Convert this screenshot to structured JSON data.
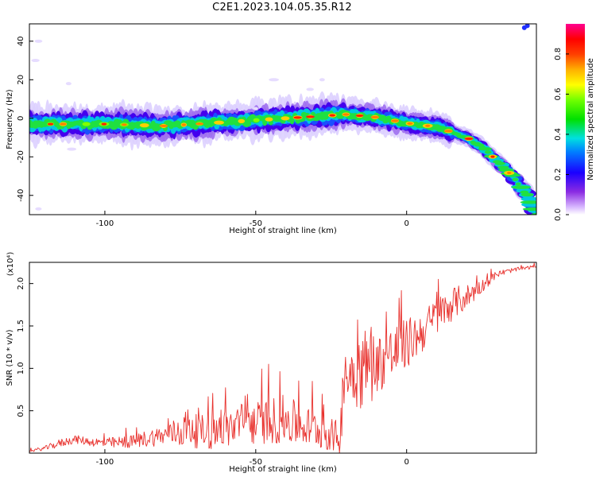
{
  "title": "C2E1.2023.104.05.35.R12",
  "chart_data": [
    {
      "type": "heatmap",
      "name": "spectrogram",
      "xlabel": "Height of straight line (km)",
      "ylabel": "Frequency (Hz)",
      "xlim": [
        -125,
        43
      ],
      "ylim": [
        -50,
        49
      ],
      "xticks": [
        -100,
        -50,
        0
      ],
      "xtick_labels": [
        "-100",
        "-50",
        "0"
      ],
      "yticks": [
        -40,
        -20,
        0,
        20,
        40
      ],
      "ytick_labels": [
        "-40",
        "-20",
        "0",
        "20",
        "40"
      ],
      "ridge": {
        "x": [
          -125,
          -110,
          -100,
          -90,
          -80,
          -70,
          -60,
          -50,
          -40,
          -30,
          -20,
          -10,
          0,
          10,
          20,
          25,
          30,
          35,
          40,
          43
        ],
        "freq": [
          -3,
          -3,
          -3,
          -3.5,
          -4,
          -3,
          -2,
          -1,
          0,
          1,
          2,
          0.5,
          -2.5,
          -4.5,
          -10,
          -15,
          -22,
          -30,
          -40,
          -50
        ]
      },
      "colorbar": {
        "label": "Normalized spectral amplitude",
        "range": [
          0.0,
          0.95
        ],
        "ticks": [
          0.0,
          0.2,
          0.4,
          0.6,
          0.8
        ],
        "tick_labels": [
          "0.0",
          "0.2",
          "0.4",
          "0.6",
          "0.8"
        ]
      }
    },
    {
      "type": "line",
      "name": "snr",
      "xlabel": "Height of straight line (km)",
      "ylabel": "SNR (10 * v/v)",
      "multiplier": "(x10⁴)",
      "xlim": [
        -125,
        43
      ],
      "ylim": [
        0.0,
        2.25
      ],
      "xticks": [
        -100,
        -50,
        0
      ],
      "xtick_labels": [
        "-100",
        "-50",
        "0"
      ],
      "yticks": [
        0.5,
        1.0,
        1.5,
        2.0
      ],
      "ytick_labels": [
        "0.5",
        "1.0",
        "1.5",
        "2.0"
      ],
      "color": "#e8322e",
      "series": [
        {
          "name": "SNR",
          "x": [
            -125,
            -120,
            -115,
            -110,
            -105,
            -100,
            -95,
            -90,
            -85,
            -80,
            -75,
            -72,
            -70,
            -65,
            -60,
            -55,
            -50,
            -45,
            -40,
            -35,
            -30,
            -25,
            -22,
            -21,
            -18,
            -15,
            -12,
            -10,
            -5,
            0,
            5,
            10,
            15,
            20,
            25,
            30,
            35,
            40,
            43
          ],
          "base": [
            0.02,
            0.05,
            0.1,
            0.15,
            0.12,
            0.1,
            0.1,
            0.12,
            0.15,
            0.18,
            0.2,
            0.25,
            0.2,
            0.18,
            0.22,
            0.25,
            0.28,
            0.3,
            0.3,
            0.25,
            0.22,
            0.15,
            0.12,
            0.7,
            0.85,
            0.85,
            0.9,
            0.95,
            1.05,
            1.2,
            1.35,
            1.55,
            1.7,
            1.8,
            1.95,
            2.1,
            2.15,
            2.18,
            2.2
          ],
          "spread": [
            0.03,
            0.05,
            0.1,
            0.1,
            0.1,
            0.12,
            0.15,
            0.15,
            0.22,
            0.22,
            0.4,
            0.5,
            0.4,
            0.4,
            0.45,
            0.55,
            0.5,
            0.55,
            0.6,
            0.5,
            0.45,
            0.4,
            0.4,
            0.8,
            0.8,
            1.0,
            0.9,
            0.7,
            0.7,
            0.6,
            0.5,
            0.45,
            0.4,
            0.3,
            0.15,
            0.08,
            0.05,
            0.04,
            0.03
          ]
        }
      ]
    }
  ]
}
